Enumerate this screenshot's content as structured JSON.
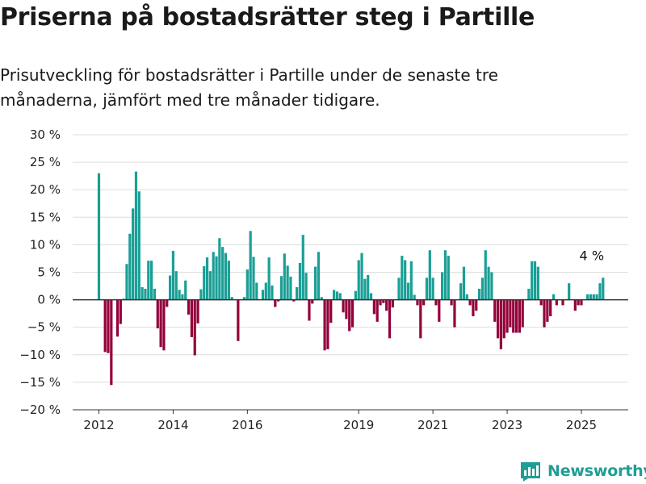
{
  "title": "Priserna på bostadsrätter steg i Partille",
  "subtitle": "Prisutveckling för bostadsrätter i Partille under de senaste tre månaderna, jämfört med tre månader tidigare.",
  "brand": "Newsworthy",
  "colors": {
    "positive": "#1a9f96",
    "negative": "#93003a",
    "zero_line": "#333333",
    "grid": "#dddddd"
  },
  "chart_data": {
    "type": "bar",
    "title": "",
    "xlabel": "",
    "ylabel": "",
    "unit": "%",
    "ylim": [
      -20,
      30
    ],
    "yticks": [
      30,
      25,
      20,
      15,
      10,
      5,
      0,
      -5,
      -10,
      -15,
      -20
    ],
    "ytick_labels": [
      "30 %",
      "25 %",
      "20 %",
      "15 %",
      "10 %",
      "5 %",
      "0 %",
      "−5 %",
      "−10 %",
      "−15 %",
      "−20 %"
    ],
    "xticks": [
      "2012",
      "2014",
      "2016",
      "2019",
      "2021",
      "2023",
      "2025"
    ],
    "grid": true,
    "annotation": "4 %",
    "start": "2012-01",
    "values": [
      23.0,
      null,
      -9.5,
      -9.7,
      -15.5,
      null,
      -6.7,
      -4.4,
      0.2,
      6.5,
      12.0,
      16.6,
      23.3,
      19.7,
      2.3,
      2.0,
      7.1,
      7.1,
      2.0,
      -5.2,
      -8.6,
      -9.2,
      -1.3,
      4.4,
      8.9,
      5.2,
      1.8,
      1.0,
      3.5,
      -2.7,
      -6.8,
      -10.1,
      -4.3,
      1.9,
      6.1,
      7.7,
      5.2,
      8.7,
      7.9,
      11.2,
      9.6,
      8.5,
      7.1,
      0.5,
      null,
      -7.5,
      null,
      0.5,
      5.5,
      12.5,
      7.8,
      3.1,
      null,
      1.8,
      3.1,
      7.7,
      2.6,
      -1.3,
      -0.3,
      4.3,
      8.4,
      6.2,
      4.2,
      -0.3,
      2.3,
      6.7,
      11.8,
      4.9,
      -3.8,
      -0.7,
      6.0,
      8.7,
      0.5,
      -9.2,
      -9.0,
      -4.2,
      1.8,
      1.5,
      1.2,
      -2.3,
      -3.5,
      -5.7,
      -5.0,
      1.6,
      7.2,
      8.5,
      3.8,
      4.5,
      1.2,
      -2.6,
      -4.0,
      -1.0,
      -0.6,
      -2.0,
      -7.0,
      -1.4,
      null,
      4.0,
      8.0,
      7.2,
      3.1,
      7.0,
      0.9,
      -1.0,
      -7.0,
      -1.0,
      4.0,
      9.0,
      4.0,
      -1.0,
      -4.0,
      5.0,
      9.0,
      8.0,
      -1.0,
      -5.0,
      null,
      3.0,
      6.0,
      1.0,
      -1.0,
      -3.0,
      -2.0,
      2.0,
      4.0,
      9.0,
      6.0,
      5.0,
      -4.0,
      -7.0,
      -9.0,
      -7.0,
      -6.0,
      -5.0,
      -6.0,
      -6.0,
      -6.0,
      -5.0,
      null,
      2.0,
      7.0,
      7.0,
      6.0,
      -1.0,
      -5.0,
      -4.0,
      -3.0,
      1.0,
      -1.0,
      null,
      -1.0,
      null,
      3.0,
      null,
      -2.0,
      -1.0,
      -1.0,
      null,
      1.0,
      1.0,
      1.0,
      1.0,
      3.0,
      4.0
    ]
  }
}
